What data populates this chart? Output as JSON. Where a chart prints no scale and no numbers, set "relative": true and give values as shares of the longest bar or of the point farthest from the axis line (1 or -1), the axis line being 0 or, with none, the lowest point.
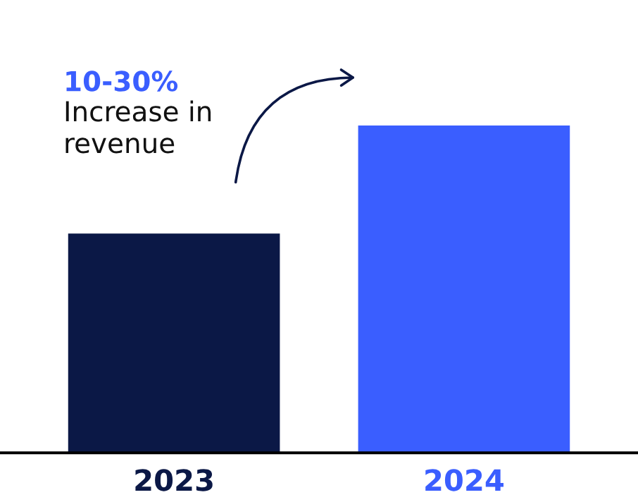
{
  "chart_data": {
    "type": "bar",
    "relative": true,
    "categories": [
      "2023",
      "2024"
    ],
    "values": [
      0.67,
      1
    ],
    "colors": [
      "#0b1846",
      "#3a5eff"
    ],
    "annotations": [
      "10-30%",
      "Increase in\nrevenue"
    ],
    "grid": false,
    "legend": false
  }
}
